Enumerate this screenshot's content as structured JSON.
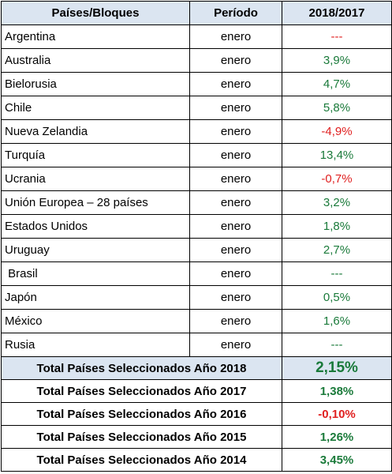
{
  "header": {
    "col1": "Países/Bloques",
    "col2": "Período",
    "col3": "2018/2017"
  },
  "rows": [
    {
      "country": "Argentina",
      "period": "enero",
      "value": "---",
      "tone": "neg"
    },
    {
      "country": "Australia",
      "period": "enero",
      "value": "3,9%",
      "tone": "pos"
    },
    {
      "country": "Bielorusia",
      "period": "enero",
      "value": "4,7%",
      "tone": "pos"
    },
    {
      "country": "Chile",
      "period": "enero",
      "value": "5,8%",
      "tone": "pos"
    },
    {
      "country": "Nueva Zelandia",
      "period": "enero",
      "value": "-4,9%",
      "tone": "neg"
    },
    {
      "country": "Turquía",
      "period": "enero",
      "value": "13,4%",
      "tone": "pos"
    },
    {
      "country": "Ucrania",
      "period": "enero",
      "value": "-0,7%",
      "tone": "neg"
    },
    {
      "country": "Unión Europea – 28 países",
      "period": "enero",
      "value": "3,2%",
      "tone": "pos"
    },
    {
      "country": "Estados Unidos",
      "period": "enero",
      "value": "1,8%",
      "tone": "pos"
    },
    {
      "country": "Uruguay",
      "period": "enero",
      "value": "2,7%",
      "tone": "pos"
    },
    {
      "country": " Brasil",
      "period": "enero",
      "value": "---",
      "tone": "pos"
    },
    {
      "country": "Japón",
      "period": "enero",
      "value": "0,5%",
      "tone": "pos"
    },
    {
      "country": "México",
      "period": "enero",
      "value": "1,6%",
      "tone": "pos"
    },
    {
      "country": "Rusia",
      "period": "enero",
      "value": "---",
      "tone": "pos"
    }
  ],
  "totals": [
    {
      "label": "Total Países Seleccionados Año 2018",
      "value": "2,15%",
      "tone": "pos"
    },
    {
      "label": "Total Países Seleccionados Año 2017",
      "value": "1,38%",
      "tone": "pos"
    },
    {
      "label": "Total Países Seleccionados Año 2016",
      "value": "-0,10%",
      "tone": "neg"
    },
    {
      "label": "Total Países Seleccionados Año 2015",
      "value": "1,26%",
      "tone": "pos"
    },
    {
      "label": "Total Países Seleccionados Año 2014",
      "value": "3,45%",
      "tone": "pos"
    }
  ],
  "colors": {
    "positive": "#1a7a3a",
    "negative": "#e02020",
    "header_bg": "#dbe5f1"
  }
}
